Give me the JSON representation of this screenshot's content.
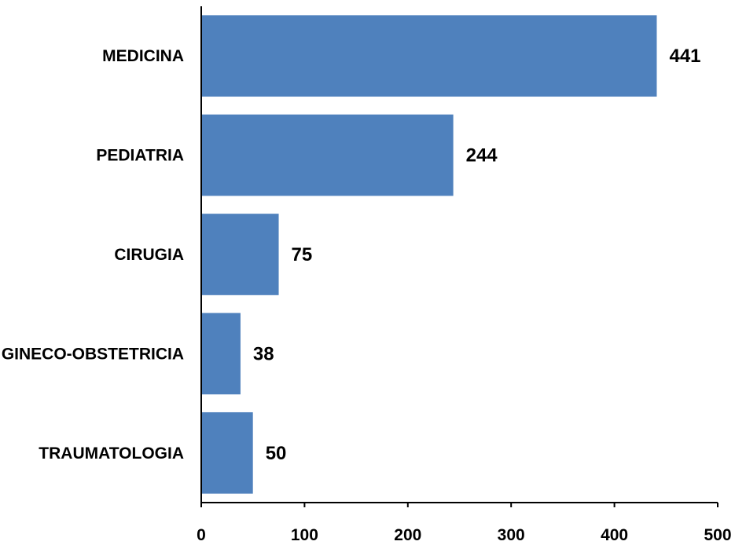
{
  "chart_data": {
    "type": "bar",
    "orientation": "horizontal",
    "categories": [
      "MEDICINA",
      "PEDIATRIA",
      "CIRUGIA",
      "GINECO-OBSTETRICIA",
      "TRAUMATOLOGIA"
    ],
    "values": [
      441,
      244,
      75,
      38,
      50
    ],
    "data_labels": [
      "441",
      "244",
      "75",
      "38",
      "50"
    ],
    "title": "",
    "xlabel": "",
    "ylabel": "",
    "xlim": [
      0,
      500
    ],
    "x_ticks": [
      0,
      100,
      200,
      300,
      400,
      500
    ],
    "x_tick_labels": [
      "0",
      "100",
      "200",
      "300",
      "400",
      "500"
    ],
    "grid": false,
    "legend": "none",
    "bar_color": "#4F81BD"
  }
}
